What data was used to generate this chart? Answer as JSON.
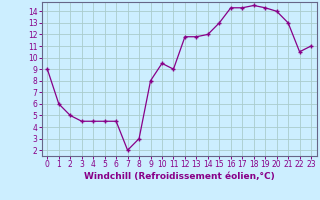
{
  "x": [
    0,
    1,
    2,
    3,
    4,
    5,
    6,
    7,
    8,
    9,
    10,
    11,
    12,
    13,
    14,
    15,
    16,
    17,
    18,
    19,
    20,
    21,
    22,
    23
  ],
  "y": [
    9.0,
    6.0,
    5.0,
    4.5,
    4.5,
    4.5,
    4.5,
    2.0,
    3.0,
    8.0,
    9.5,
    9.0,
    11.8,
    11.8,
    12.0,
    13.0,
    14.3,
    14.3,
    14.5,
    14.3,
    14.0,
    13.0,
    10.5,
    11.0
  ],
  "line_color": "#880088",
  "marker": "+",
  "bg_color": "#cceeff",
  "grid_color": "#aacccc",
  "xlabel": "Windchill (Refroidissement éolien,°C)",
  "xlim": [
    -0.5,
    23.5
  ],
  "ylim": [
    1.5,
    14.8
  ],
  "yticks": [
    2,
    3,
    4,
    5,
    6,
    7,
    8,
    9,
    10,
    11,
    12,
    13,
    14
  ],
  "xticks": [
    0,
    1,
    2,
    3,
    4,
    5,
    6,
    7,
    8,
    9,
    10,
    11,
    12,
    13,
    14,
    15,
    16,
    17,
    18,
    19,
    20,
    21,
    22,
    23
  ],
  "tick_fontsize": 5.5,
  "xlabel_fontsize": 6.5,
  "spine_color": "#666688"
}
